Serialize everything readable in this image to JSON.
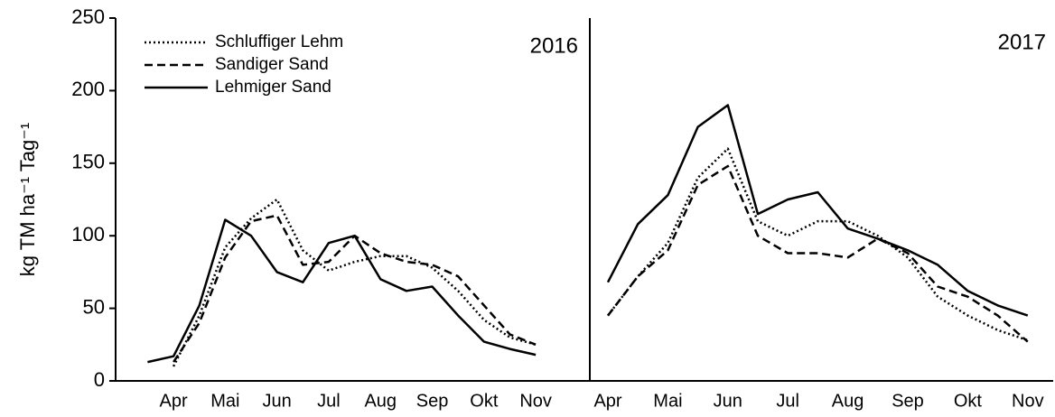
{
  "chart_data": [
    {
      "type": "line",
      "annotation": "2016",
      "ylabel": "kg TM ha⁻¹ Tag⁻¹",
      "ylim": [
        0,
        250
      ],
      "yticks": [
        0,
        50,
        100,
        150,
        200,
        250
      ],
      "categories": [
        null,
        "Apr",
        null,
        "Mai",
        null,
        "Jun",
        null,
        "Jul",
        null,
        "Aug",
        null,
        "Sep",
        null,
        "Okt",
        null,
        "Nov"
      ],
      "series": [
        {
          "name": "Schluffiger Lehm",
          "color": "#000000",
          "linestyle": "dotted",
          "values": [
            null,
            10,
            45,
            92,
            112,
            125,
            90,
            76,
            82,
            86,
            86,
            78,
            62,
            42,
            30,
            25
          ]
        },
        {
          "name": "Sandiger Sand",
          "color": "#000000",
          "linestyle": "dashed",
          "values": [
            null,
            13,
            40,
            85,
            110,
            114,
            80,
            82,
            100,
            88,
            82,
            80,
            72,
            52,
            32,
            25
          ]
        },
        {
          "name": "Lehmiger Sand",
          "color": "#000000",
          "linestyle": "solid",
          "values": [
            13,
            17,
            52,
            111,
            100,
            75,
            68,
            95,
            100,
            70,
            62,
            65,
            45,
            27,
            22,
            18
          ]
        }
      ]
    },
    {
      "type": "line",
      "annotation": "2017",
      "categories": [
        "Apr",
        null,
        "Mai",
        null,
        "Jun",
        null,
        "Jul",
        null,
        "Aug",
        null,
        "Sep",
        null,
        "Okt",
        null,
        "Nov"
      ],
      "series": [
        {
          "name": "Schluffiger Lehm",
          "color": "#000000",
          "linestyle": "dotted",
          "values": [
            45,
            72,
            95,
            140,
            160,
            110,
            100,
            110,
            110,
            100,
            85,
            58,
            45,
            35,
            28
          ]
        },
        {
          "name": "Sandiger Sand",
          "color": "#000000",
          "linestyle": "dashed",
          "values": [
            45,
            72,
            90,
            135,
            148,
            100,
            88,
            88,
            85,
            98,
            88,
            65,
            58,
            45,
            27
          ]
        },
        {
          "name": "Lehmiger Sand",
          "color": "#000000",
          "linestyle": "solid",
          "values": [
            68,
            108,
            128,
            175,
            190,
            115,
            125,
            130,
            105,
            98,
            90,
            80,
            62,
            52,
            45
          ]
        }
      ]
    }
  ]
}
